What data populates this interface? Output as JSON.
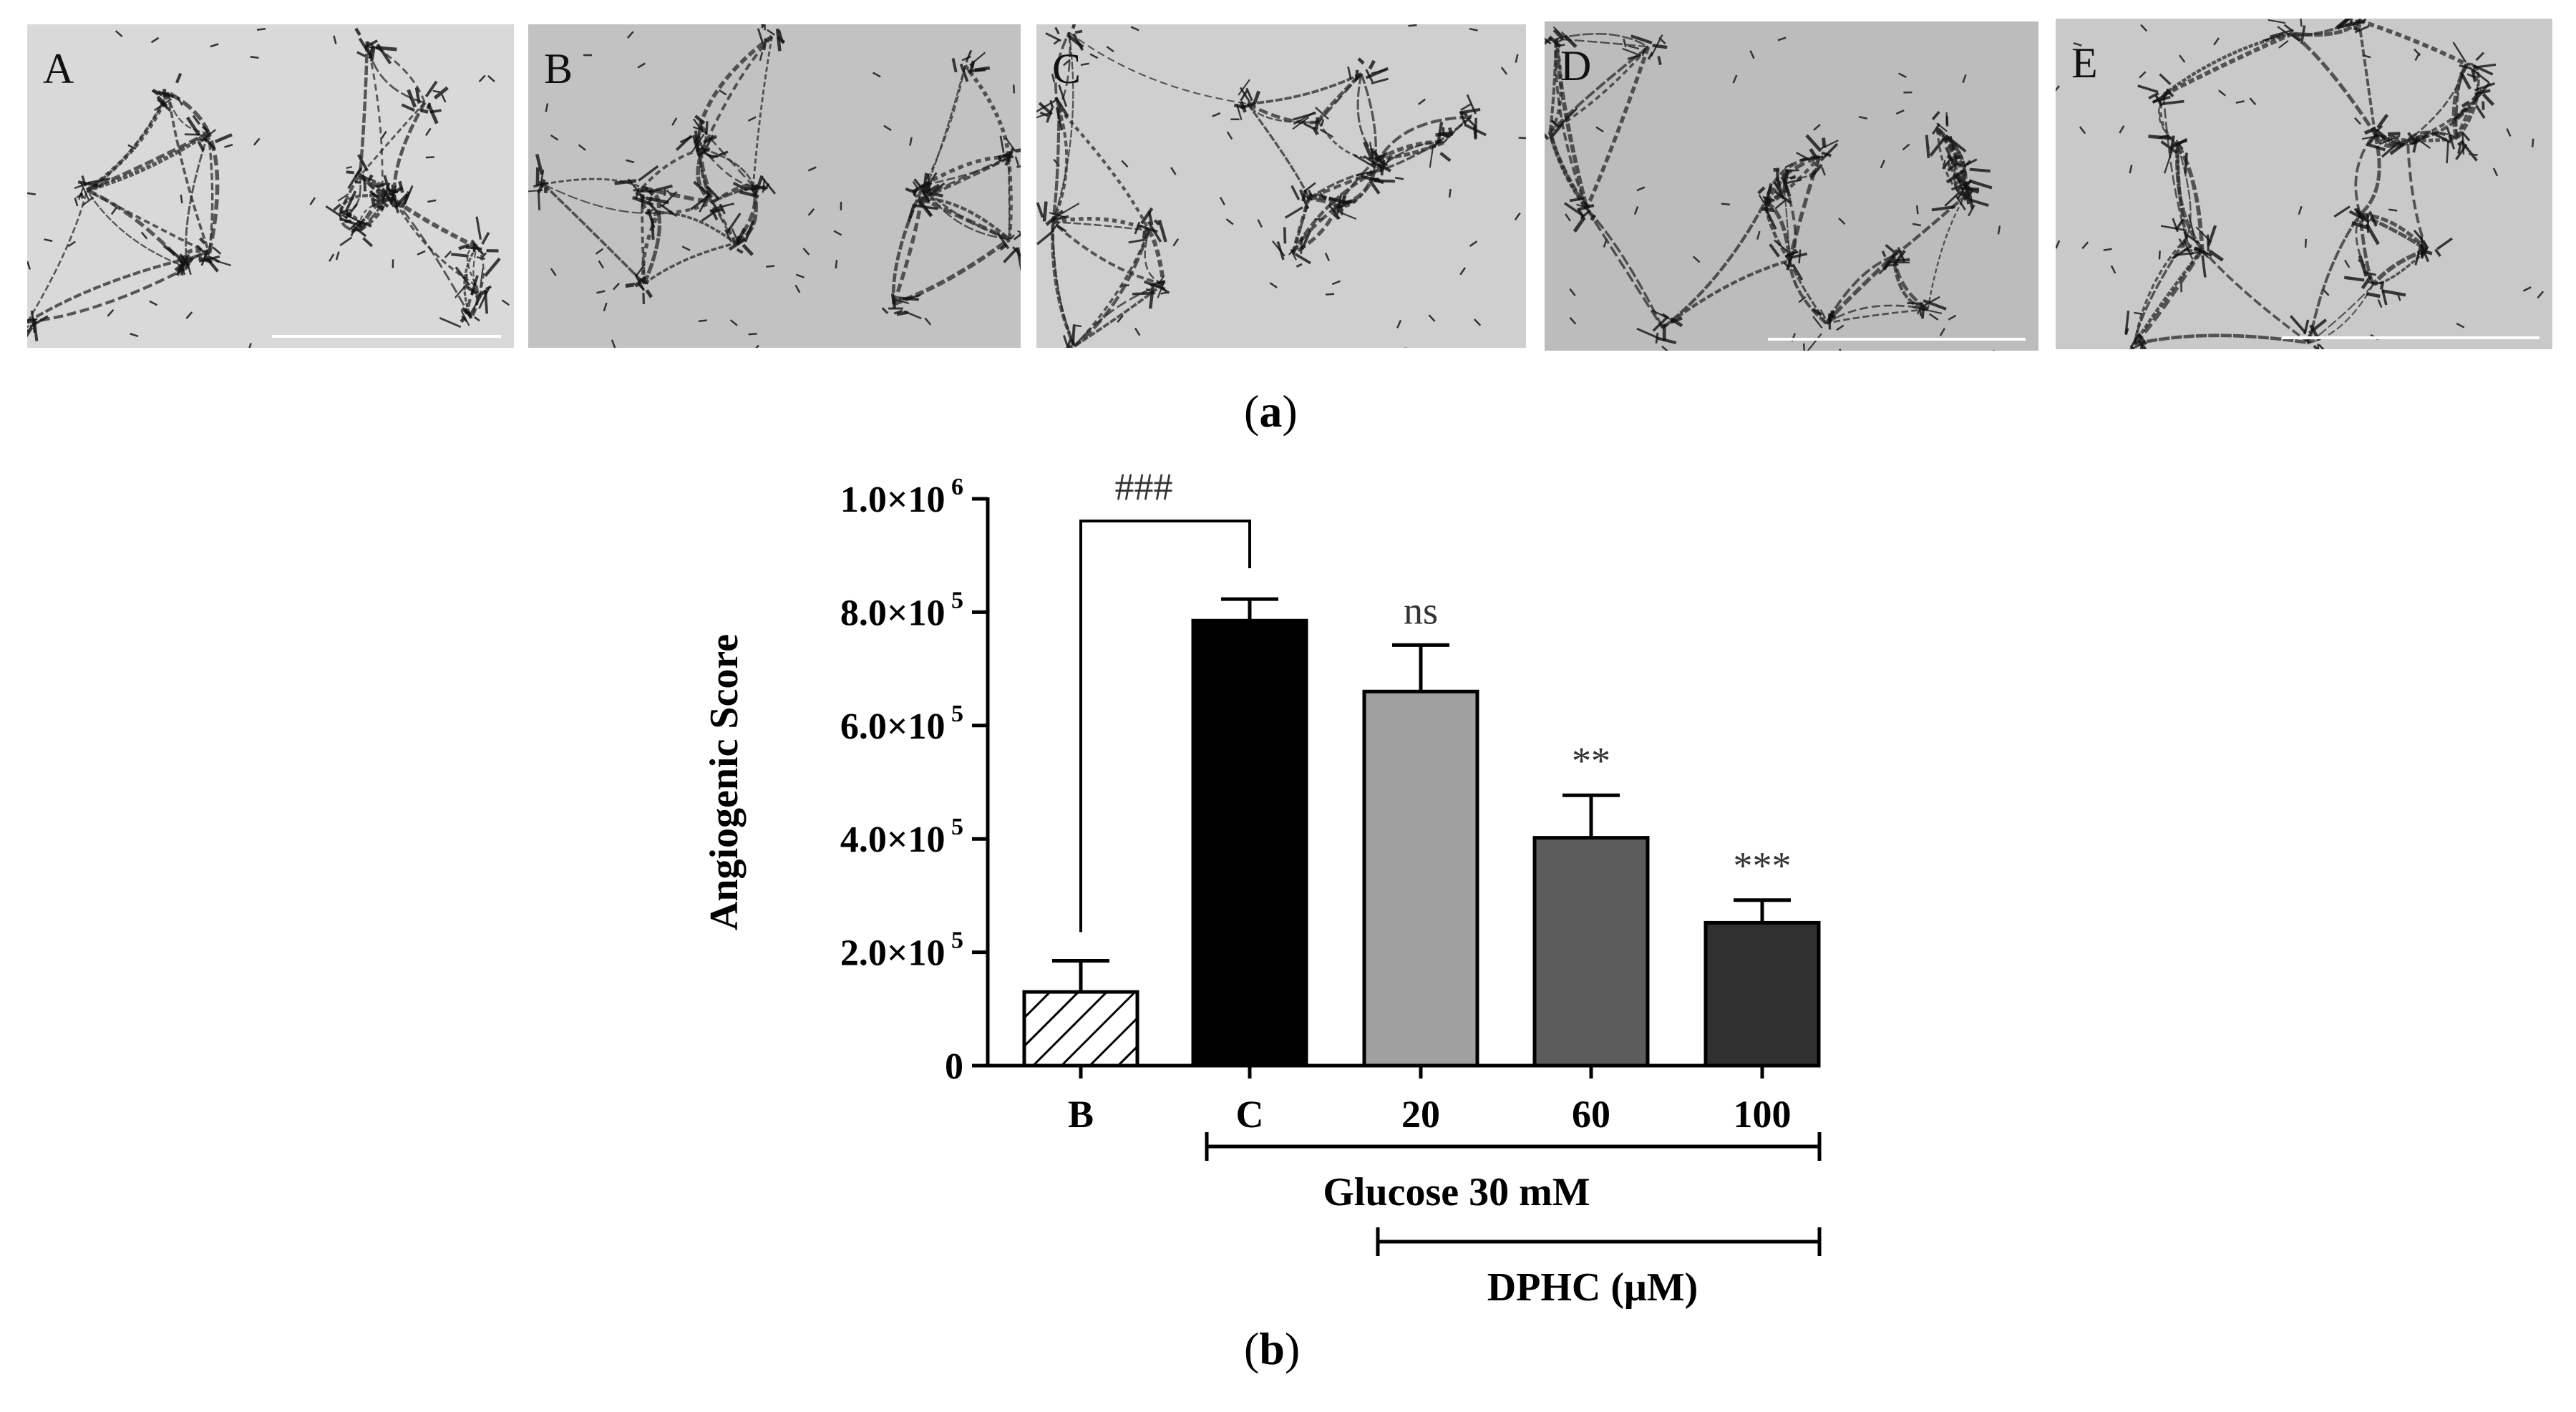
{
  "panel_a": {
    "caption_open": "(",
    "caption_letter": "a",
    "caption_close": ")",
    "images": [
      {
        "label": "A"
      },
      {
        "label": "B"
      },
      {
        "label": "C"
      },
      {
        "label": "D"
      },
      {
        "label": "E"
      }
    ]
  },
  "panel_b": {
    "caption_open": "(",
    "caption_letter": "b",
    "caption_close": ")"
  },
  "chart_data": {
    "type": "bar",
    "categories": [
      "B",
      "C",
      "20",
      "60",
      "100"
    ],
    "values": [
      130000,
      785000,
      660000,
      402000,
      252000
    ],
    "errors": [
      55000,
      38000,
      82000,
      75000,
      40000
    ],
    "bar_fills": [
      "hatch",
      "#000000",
      "#a0a0a0",
      "#5c5c5c",
      "#303030"
    ],
    "ylabel": "Angiogenic Score",
    "xlabel": "",
    "ylim": [
      0,
      1000000
    ],
    "yticks": [
      {
        "value": 0,
        "label": "0"
      },
      {
        "value": 200000,
        "mantissa": "2.0",
        "times": "×",
        "base": "10",
        "exp": "5"
      },
      {
        "value": 400000,
        "mantissa": "4.0",
        "times": "×",
        "base": "10",
        "exp": "5"
      },
      {
        "value": 600000,
        "mantissa": "6.0",
        "times": "×",
        "base": "10",
        "exp": "5"
      },
      {
        "value": 800000,
        "mantissa": "8.0",
        "times": "×",
        "base": "10",
        "exp": "5"
      },
      {
        "value": 1000000,
        "mantissa": "1.0",
        "times": "×",
        "base": "10",
        "exp": "6"
      }
    ],
    "significance": {
      "bracket_label": "###",
      "bracket_between": [
        "B",
        "C"
      ],
      "bar_labels": [
        "",
        "",
        "ns",
        "**",
        "***"
      ]
    },
    "groups": [
      {
        "label": "Glucose 30 mM",
        "from": "C",
        "to": "100"
      },
      {
        "label": "DPHC (μM)",
        "from": "20",
        "to": "100"
      }
    ],
    "grid": false,
    "legend": "none"
  }
}
